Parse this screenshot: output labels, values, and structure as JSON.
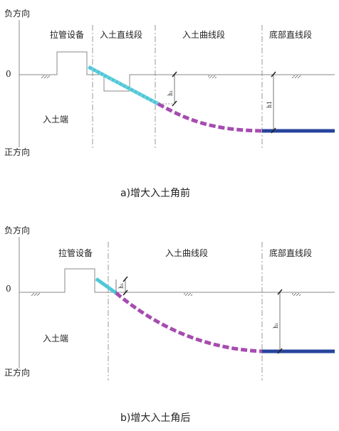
{
  "diagram_a": {
    "axis_negative": "负方向",
    "axis_positive": "正方向",
    "zero": "0",
    "section_pulling": "拉管设备",
    "section_straight_entry": "入土直线段",
    "section_curve": "入土曲线段",
    "section_bottom": "底部直线段",
    "entry_end": "入土端",
    "dim_h1_left": "h₁",
    "dim_h1_right": "h1",
    "caption": "a)增大入土角前"
  },
  "diagram_b": {
    "axis_negative": "负方向",
    "axis_positive": "正方向",
    "zero": "0",
    "section_pulling": "拉管设备",
    "section_curve": "入土曲线段",
    "section_bottom": "底部直线段",
    "entry_end": "入土端",
    "dim_h1_left": "h₁",
    "dim_h1_right": "h₁",
    "caption": "b)增大入土角后"
  },
  "colors": {
    "straight_pipe": "#4fc8d8",
    "curve_pipe": "#a64cb0",
    "bottom_pipe": "#26449c",
    "line": "#777777"
  }
}
